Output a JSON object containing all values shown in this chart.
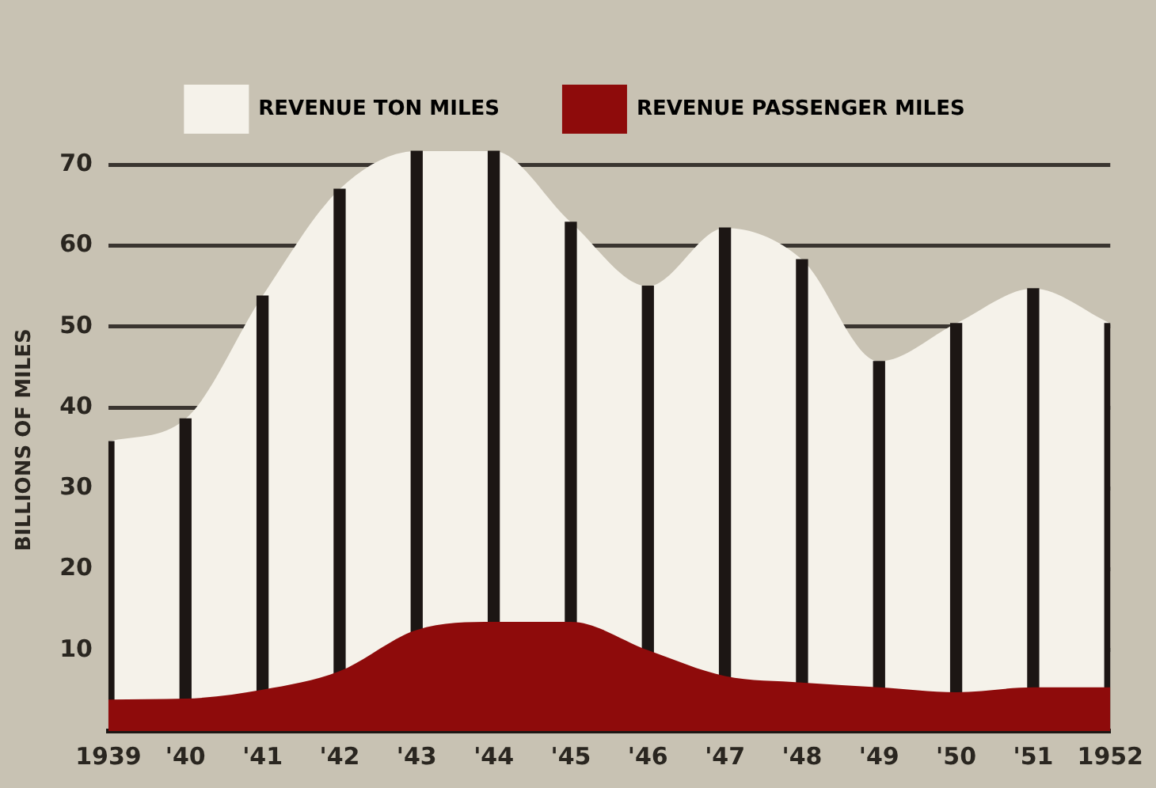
{
  "chart_data": {
    "type": "area",
    "ylabel": "BILLIONS OF MILES",
    "categories": [
      "1939",
      "'40",
      "'41",
      "'42",
      "'43",
      "'44",
      "'45",
      "'46",
      "'47",
      "'48",
      "'49",
      "'50",
      "'51",
      "1952"
    ],
    "series": [
      {
        "name": "REVENUE TON MILES",
        "color": "#f5f2ea",
        "values": [
          35.8,
          38.6,
          53.8,
          67,
          71.7,
          71.7,
          62.9,
          55,
          62.2,
          58.3,
          45.7,
          50.4,
          54.7,
          50.4
        ]
      },
      {
        "name": "REVENUE PASSENGER MILES",
        "color": "#8e0b0b",
        "values": [
          3.9,
          4,
          5.1,
          7.4,
          12.5,
          13.5,
          13.5,
          10,
          6.8,
          6,
          5.4,
          4.8,
          5.4,
          5.4
        ]
      },
      {
        "type": "bar",
        "color": "#1c1614",
        "values": [
          35.8,
          38.6,
          53.8,
          67,
          71.7,
          71.7,
          62.9,
          55,
          62.2,
          58.3,
          45.7,
          50.4,
          54.7,
          50.4
        ]
      }
    ],
    "ylim": [
      0,
      72
    ],
    "yticks": [
      10,
      20,
      30,
      40,
      50,
      60,
      70
    ],
    "grid": "y",
    "legend": "top"
  }
}
